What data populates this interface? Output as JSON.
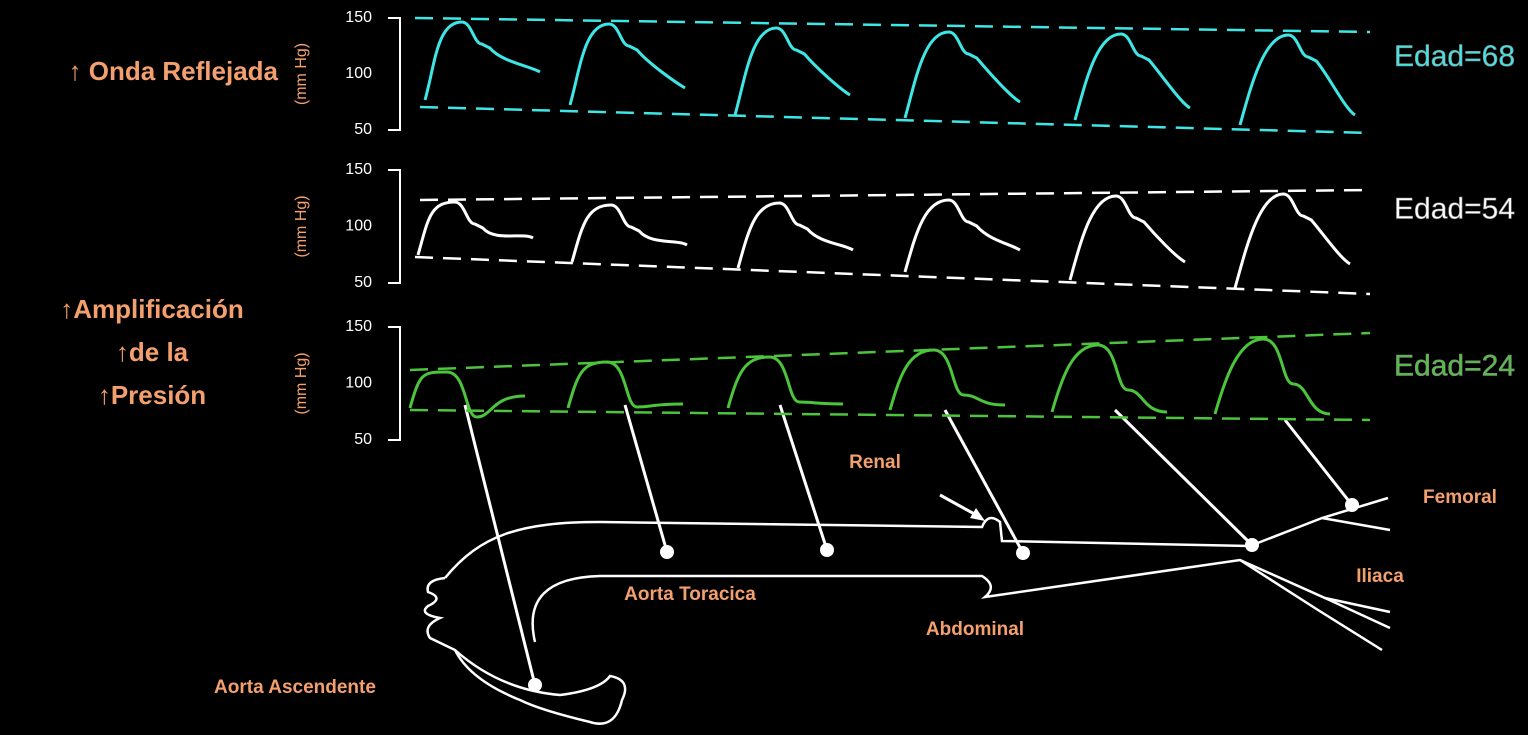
{
  "left_labels": {
    "reflected": "↑ Onda Reflejada",
    "amplification": [
      "↑Amplificación",
      "↑de la",
      "↑Presión"
    ]
  },
  "panels": [
    {
      "y_axis_label": "(mm Hg)",
      "ticks": [
        150,
        100,
        50
      ],
      "age": "Edad=68",
      "color": "#3fe6e6"
    },
    {
      "y_axis_label": "(mm Hg)",
      "ticks": [
        150,
        100,
        50
      ],
      "age": "Edad=54",
      "color": "#ffffff"
    },
    {
      "y_axis_label": "(mm Hg)",
      "ticks": [
        150,
        100,
        50
      ],
      "age": "Edad=24",
      "color": "#4cc43c"
    }
  ],
  "anatomy": {
    "ascending": "Aorta Ascendente",
    "thoracic": "Aorta Toracica",
    "abdominal": "Abdominal",
    "renal": "Renal",
    "femoral": "Femoral",
    "iliac": "Iliaca"
  }
}
